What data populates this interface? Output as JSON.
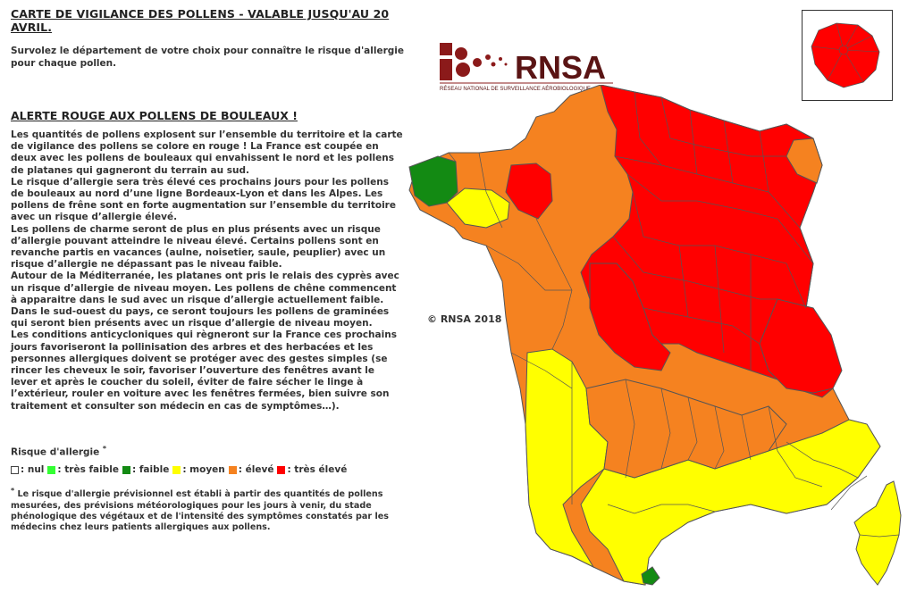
{
  "header": {
    "title": "CARTE DE VIGILANCE DES POLLENS - VALABLE JUSQU'AU 20 AVRIL.",
    "intro": "Survolez le département de votre choix pour connaître le risque d'allergie pour chaque pollen."
  },
  "alert": {
    "title": "ALERTE ROUGE AUX POLLENS DE BOULEAUX !",
    "body": "Les quantités de pollens explosent sur l’ensemble du territoire et la carte de vigilance des pollens se colore en rouge ! La France est coupée en deux avec les pollens de bouleaux qui envahissent le nord et les pollens de platanes qui gagneront du terrain au sud.\nLe risque d’allergie sera très élevé ces prochains jours pour les pollens de bouleaux au nord d’une ligne Bordeaux-Lyon et dans les Alpes. Les pollens de frêne sont en forte augmentation sur l’ensemble du territoire avec un risque d’allergie élevé.\nLes pollens de charme seront de plus en plus présents avec un risque d’allergie pouvant atteindre le niveau élevé. Certains pollens sont en revanche partis en vacances (aulne, noisetier, saule, peuplier) avec un risque d’allergie ne dépassant pas le niveau faible.\nAutour de la Méditerranée, les platanes ont pris le relais des cyprès avec un risque d’allergie de niveau moyen. Les pollens de chêne commencent à apparaitre dans le sud avec un risque d’allergie actuellement faible. Dans le sud-ouest du pays, ce seront toujours les pollens de graminées qui seront bien présents avec un risque d’allergie de niveau moyen.\nLes conditions anticycloniques qui règneront sur la France ces prochains jours favoriseront la pollinisation des arbres et des herbacées et les personnes allergiques doivent se protéger avec des gestes simples (se rincer les cheveux le soir, favoriser l’ouverture des fenêtres avant le lever et après le coucher du soleil, éviter de faire sécher le linge à l’extérieur, rouler en voiture avec les fenêtres fermées, bien suivre son traitement et consulter son médecin en cas de symptômes…)."
  },
  "risk": {
    "title": "Risque d'allergie",
    "asterisk": "*",
    "legend": [
      {
        "label": ": nul",
        "color": "#ffffff"
      },
      {
        "label": ": très faible",
        "color": "#33ff33"
      },
      {
        "label": ": faible",
        "color": "#138a13"
      },
      {
        "label": ": moyen",
        "color": "#ffff00"
      },
      {
        "label": ": élevé",
        "color": "#f58220"
      },
      {
        "label": ": très élevé",
        "color": "#ff0000"
      }
    ],
    "footnote": "Le risque d'allergie prévisionnel est établi à partir des quantités de pollens mesurées, des prévisions météorologiques pour les jours à venir, du stade phénologique des végétaux et de l'intensité des symptômes constatés par les médecins chez leurs patients allergiques aux pollens."
  },
  "logo": {
    "name": "RNSA",
    "subtitle": "RÉSEAU NATIONAL DE SURVEILLANCE AÉROBIOLOGIQUE",
    "color": "#8b1a1a"
  },
  "map": {
    "copyright": "© RNSA 2018",
    "colors": {
      "red": "#ff0000",
      "orange": "#f58220",
      "yellow": "#ffff00",
      "green": "#138a13",
      "border": "#555555"
    }
  }
}
